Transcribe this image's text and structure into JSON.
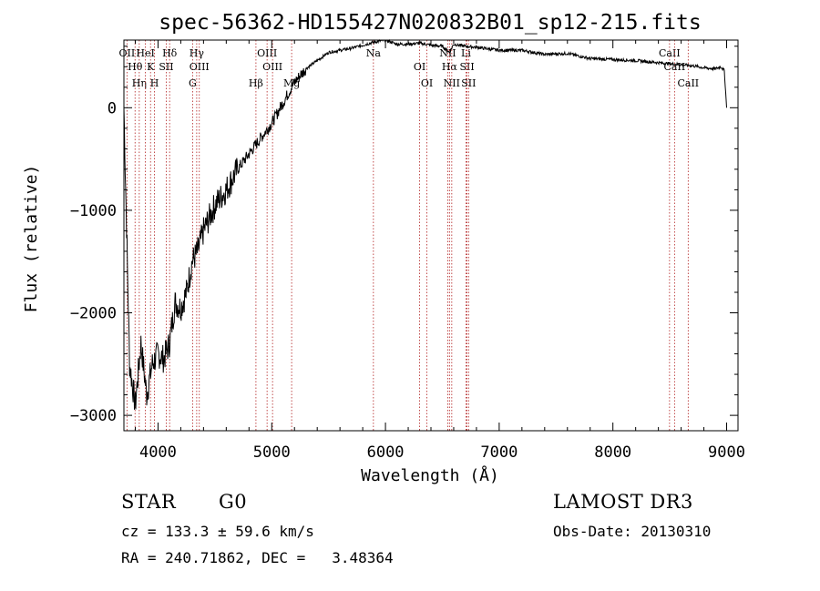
{
  "chart_data": {
    "type": "line",
    "title": "spec-56362-HD155427N020832B01_sp12-215.fits",
    "xlabel": "Wavelength (Å)",
    "ylabel": "Flux (relative)",
    "xlim": [
      3700,
      9100
    ],
    "ylim": [
      -3150,
      660
    ],
    "x_ticks": [
      4000,
      5000,
      6000,
      7000,
      8000,
      9000
    ],
    "x_tick_labels": [
      "4000",
      "5000",
      "6000",
      "7000",
      "8000",
      "9000"
    ],
    "y_ticks": [
      0,
      -1000,
      -2000,
      -3000
    ],
    "y_tick_labels": [
      "0",
      "−1000",
      "−2000",
      "−3000"
    ],
    "series": [
      {
        "name": "flux",
        "x": [
          3700,
          3750,
          3800,
          3850,
          3900,
          3950,
          4000,
          4050,
          4100,
          4150,
          4200,
          4250,
          4300,
          4350,
          4400,
          4500,
          4600,
          4700,
          4800,
          4900,
          5000,
          5100,
          5200,
          5300,
          5400,
          5500,
          5600,
          5700,
          5800,
          5900,
          6000,
          6100,
          6200,
          6300,
          6400,
          6500,
          6563,
          6600,
          6700,
          6800,
          7000,
          7200,
          7400,
          7600,
          7800,
          8000,
          8200,
          8400,
          8500,
          8600,
          8700,
          8800,
          8900,
          8950,
          8980,
          9000
        ],
        "y": [
          0,
          -2500,
          -2900,
          -2300,
          -2800,
          -2500,
          -2400,
          -2450,
          -2300,
          -1900,
          -1950,
          -1800,
          -1500,
          -1400,
          -1200,
          -950,
          -800,
          -600,
          -450,
          -300,
          -150,
          50,
          250,
          380,
          460,
          540,
          560,
          580,
          610,
          640,
          660,
          620,
          620,
          630,
          610,
          600,
          540,
          620,
          600,
          590,
          560,
          560,
          520,
          530,
          480,
          470,
          460,
          440,
          430,
          420,
          410,
          390,
          380,
          400,
          360,
          0
        ]
      }
    ],
    "lines": [
      {
        "label": "OII",
        "x": 3727
      },
      {
        "label": "Hθ",
        "x": 3798
      },
      {
        "label": "Hη",
        "x": 3835
      },
      {
        "label": "HeI",
        "x": 3889
      },
      {
        "label": "K",
        "x": 3934
      },
      {
        "label": "H",
        "x": 3969
      },
      {
        "label": "Hδ",
        "x": 4102
      },
      {
        "label": "SII",
        "x": 4072
      },
      {
        "label": "G",
        "x": 4304
      },
      {
        "label": "Hγ",
        "x": 4340
      },
      {
        "label": "OIII",
        "x": 4363
      },
      {
        "label": "Hβ",
        "x": 4861
      },
      {
        "label": "OIII",
        "x": 4959
      },
      {
        "label": "OIII",
        "x": 5007
      },
      {
        "label": "Mg",
        "x": 5175
      },
      {
        "label": "Na",
        "x": 5894
      },
      {
        "label": "OI",
        "x": 6300
      },
      {
        "label": "OI",
        "x": 6364
      },
      {
        "label": "NII",
        "x": 6548
      },
      {
        "label": "Hα",
        "x": 6563
      },
      {
        "label": "NII",
        "x": 6583
      },
      {
        "label": "Li",
        "x": 6708
      },
      {
        "label": "SII",
        "x": 6717
      },
      {
        "label": "SII",
        "x": 6731
      },
      {
        "label": "CaII",
        "x": 8498
      },
      {
        "label": "CaII",
        "x": 8542
      },
      {
        "label": "CaII",
        "x": 8662
      }
    ],
    "grid": false,
    "legend": "none"
  },
  "info": {
    "object_class": "STAR",
    "subclass": "G0",
    "survey": "LAMOST DR3",
    "cz": "cz = 133.3 ± 59.6 km/s",
    "obs_date": "Obs-Date: 20130310",
    "coords": "RA = 240.71862, DEC =   3.48364"
  },
  "colors": {
    "line_marker": "#b22222",
    "spectrum": "#000000",
    "axes": "#000000",
    "background": "#ffffff"
  }
}
